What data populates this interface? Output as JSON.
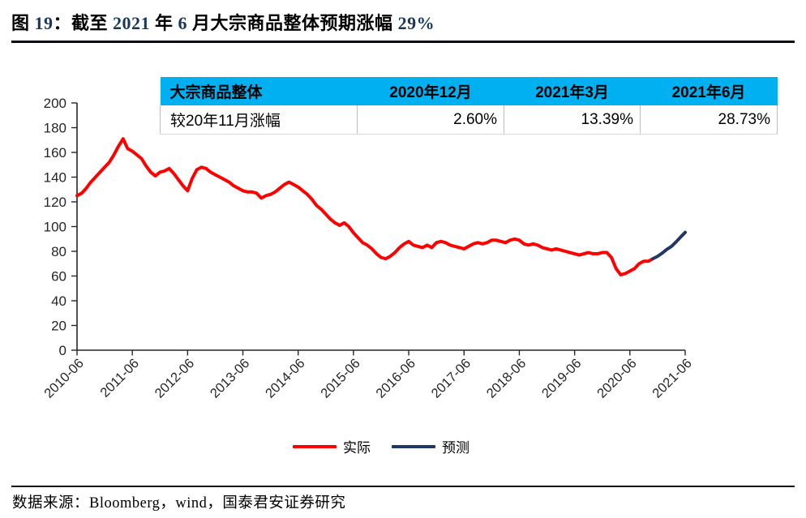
{
  "title": {
    "full": "图 19：截至 2021 年 6 月大宗商品整体预期涨幅 29%",
    "parts": [
      {
        "text": "图 "
      },
      {
        "text": "19"
      },
      {
        "text": "：截至 "
      },
      {
        "text": "2021"
      },
      {
        "text": " 年 "
      },
      {
        "text": "6"
      },
      {
        "text": " 月大宗商品整体预期涨幅 "
      },
      {
        "text": "29%"
      }
    ],
    "accent_color": "#17375E"
  },
  "table": {
    "header": [
      "大宗商品整体",
      "2020年12月",
      "2021年3月",
      "2021年6月"
    ],
    "row": [
      "较20年11月涨幅",
      "2.60%",
      "13.39%",
      "28.73%"
    ],
    "header_bg": "#00B0F0"
  },
  "chart_data": {
    "type": "line",
    "title": "截至2021年6月大宗商品整体预期涨幅29%",
    "xlabel": "",
    "ylabel": "",
    "ylim": [
      0,
      200
    ],
    "yticks": [
      0,
      20,
      40,
      60,
      80,
      100,
      120,
      140,
      160,
      180,
      200
    ],
    "x_start": "2010-06",
    "x_end": "2021-06",
    "n_points": 133,
    "x_tick_labels": [
      "2010-06",
      "2011-06",
      "2012-06",
      "2013-06",
      "2014-06",
      "2015-06",
      "2016-06",
      "2017-06",
      "2018-06",
      "2019-06",
      "2020-06",
      "2021-06"
    ],
    "grid": false,
    "legend_position": "bottom",
    "axis_color": "#262626",
    "series": [
      {
        "name": "实际",
        "color": "#FF0000",
        "start_index": 0,
        "values": [
          125,
          127,
          131,
          136,
          140,
          144,
          148,
          152,
          158,
          165,
          171,
          163,
          161,
          158,
          155,
          149,
          144,
          141,
          144,
          145,
          147,
          143,
          138,
          133,
          129,
          139,
          146,
          148,
          147,
          144,
          142,
          140,
          138,
          136,
          133,
          131,
          129,
          128,
          128,
          127,
          123,
          125,
          126,
          128,
          131,
          134,
          136,
          134,
          132,
          129,
          126,
          122,
          117,
          114,
          110,
          106,
          103,
          101,
          103,
          100,
          95,
          91,
          87,
          85,
          82,
          78,
          75,
          74,
          76,
          79,
          83,
          86,
          88,
          85,
          84,
          83,
          85,
          83,
          87,
          88,
          87,
          85,
          84,
          83,
          82,
          84,
          86,
          87,
          86,
          87,
          89,
          89,
          88,
          87,
          89,
          90,
          89,
          86,
          85,
          86,
          85,
          83,
          82,
          81,
          82,
          81,
          80,
          79,
          78,
          77,
          78,
          79,
          78,
          78,
          79,
          79,
          75,
          66,
          61,
          62,
          64,
          66,
          70,
          72,
          72,
          74
        ]
      },
      {
        "name": "预测",
        "color": "#1F3864",
        "start_index": 125,
        "values": [
          74,
          75.9,
          78.5,
          81.5,
          83.9,
          87.5,
          91.5,
          95.3
        ]
      }
    ]
  },
  "footer": {
    "source_text": "数据来源：Bloomberg，wind，国泰君安证券研究"
  }
}
